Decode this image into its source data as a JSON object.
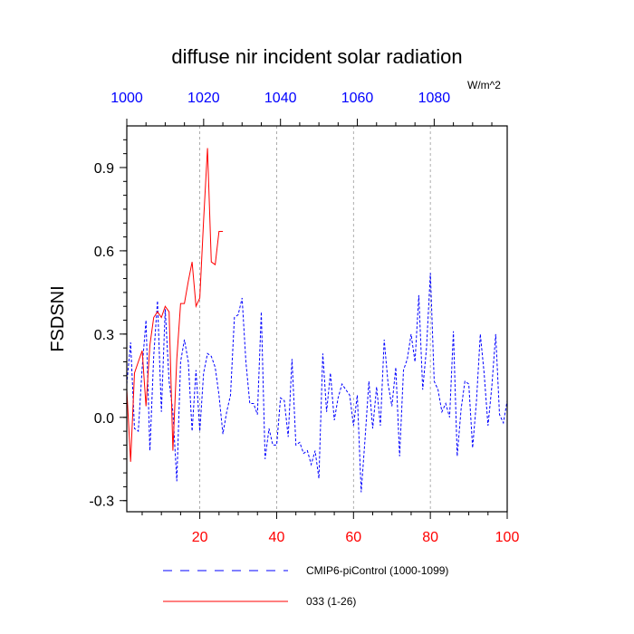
{
  "colors": {
    "axis": "#000000",
    "grid": "#999999",
    "bottom_ticks": "#ff0000",
    "top_ticks": "#0000ff"
  },
  "chart_data": {
    "type": "line",
    "title": "diffuse nir incident solar radiation",
    "ylabel": "FSDSNI",
    "units_label": "W/m^2",
    "xlim": [
      1,
      100
    ],
    "ylim": [
      -0.34,
      1.05
    ],
    "x_ticks": [
      20,
      40,
      60,
      80,
      100
    ],
    "x_tick_labels": [
      "20",
      "40",
      "60",
      "80",
      "100"
    ],
    "top_axis": {
      "range": [
        1000,
        1099
      ],
      "ticks": [
        1000,
        1020,
        1040,
        1060,
        1080
      ],
      "tick_labels": [
        "1000",
        "1020",
        "1040",
        "1060",
        "1080"
      ]
    },
    "y_ticks": [
      -0.3,
      0.0,
      0.3,
      0.6,
      0.9
    ],
    "y_tick_labels": [
      "-0.3",
      "0.0",
      "0.3",
      "0.6",
      "0.9"
    ],
    "vertical_grid": [
      20,
      40,
      60,
      80
    ],
    "legend_position": "bottom",
    "series": [
      {
        "name": "CMIP6-piControl (1000-1099)",
        "color": "#0000ff",
        "dash": "dashed",
        "x": [
          1,
          2,
          3,
          4,
          5,
          6,
          7,
          8,
          9,
          10,
          11,
          12,
          13,
          14,
          15,
          16,
          17,
          18,
          19,
          20,
          21,
          22,
          23,
          24,
          25,
          26,
          27,
          28,
          29,
          30,
          31,
          32,
          33,
          34,
          35,
          36,
          37,
          38,
          39,
          40,
          41,
          42,
          43,
          44,
          45,
          46,
          47,
          48,
          49,
          50,
          51,
          52,
          53,
          54,
          55,
          56,
          57,
          58,
          59,
          60,
          61,
          62,
          63,
          64,
          65,
          66,
          67,
          68,
          69,
          70,
          71,
          72,
          73,
          74,
          75,
          76,
          77,
          78,
          79,
          80,
          81,
          82,
          83,
          84,
          85,
          86,
          87,
          88,
          89,
          90,
          91,
          92,
          93,
          94,
          95,
          96,
          97,
          98,
          99,
          100
        ],
        "y": [
          0.12,
          0.27,
          -0.04,
          -0.05,
          0.18,
          0.35,
          -0.12,
          0.22,
          0.42,
          0.02,
          0.39,
          0.13,
          0.02,
          -0.23,
          0.2,
          0.28,
          0.2,
          -0.05,
          0.17,
          -0.05,
          0.16,
          0.23,
          0.22,
          0.18,
          0.08,
          -0.06,
          0.02,
          0.08,
          0.36,
          0.37,
          0.43,
          0.2,
          0.05,
          0.05,
          0.01,
          0.38,
          -0.15,
          -0.04,
          -0.1,
          -0.1,
          0.07,
          0.06,
          -0.07,
          0.21,
          -0.1,
          -0.09,
          -0.13,
          -0.12,
          -0.17,
          -0.12,
          -0.22,
          0.23,
          0.02,
          0.16,
          -0.01,
          0.07,
          0.12,
          0.1,
          0.08,
          -0.03,
          0.08,
          -0.27,
          -0.08,
          0.13,
          -0.04,
          0.11,
          -0.03,
          0.28,
          0.12,
          0.04,
          0.18,
          -0.14,
          0.17,
          0.21,
          0.3,
          0.2,
          0.44,
          0.1,
          0.25,
          0.52,
          0.13,
          0.1,
          0.02,
          0.05,
          0.0,
          0.31,
          -0.14,
          0.03,
          0.13,
          0.12,
          -0.11,
          0.06,
          0.3,
          0.16,
          -0.03,
          0.11,
          0.3,
          0.01,
          -0.02,
          0.06
        ]
      },
      {
        "name": "033 (1-26)",
        "color": "#ff0000",
        "dash": "solid",
        "x": [
          1,
          2,
          3,
          4,
          5,
          6,
          7,
          8,
          9,
          10,
          11,
          12,
          13,
          14,
          15,
          16,
          17,
          18,
          19,
          20,
          21,
          22,
          23,
          24,
          25,
          26
        ],
        "y": [
          0.1,
          -0.16,
          0.16,
          0.2,
          0.24,
          0.04,
          0.26,
          0.36,
          0.38,
          0.36,
          0.4,
          0.38,
          -0.12,
          0.21,
          0.41,
          0.41,
          0.49,
          0.56,
          0.4,
          0.43,
          0.71,
          0.97,
          0.56,
          0.55,
          0.67,
          0.67
        ]
      }
    ]
  }
}
